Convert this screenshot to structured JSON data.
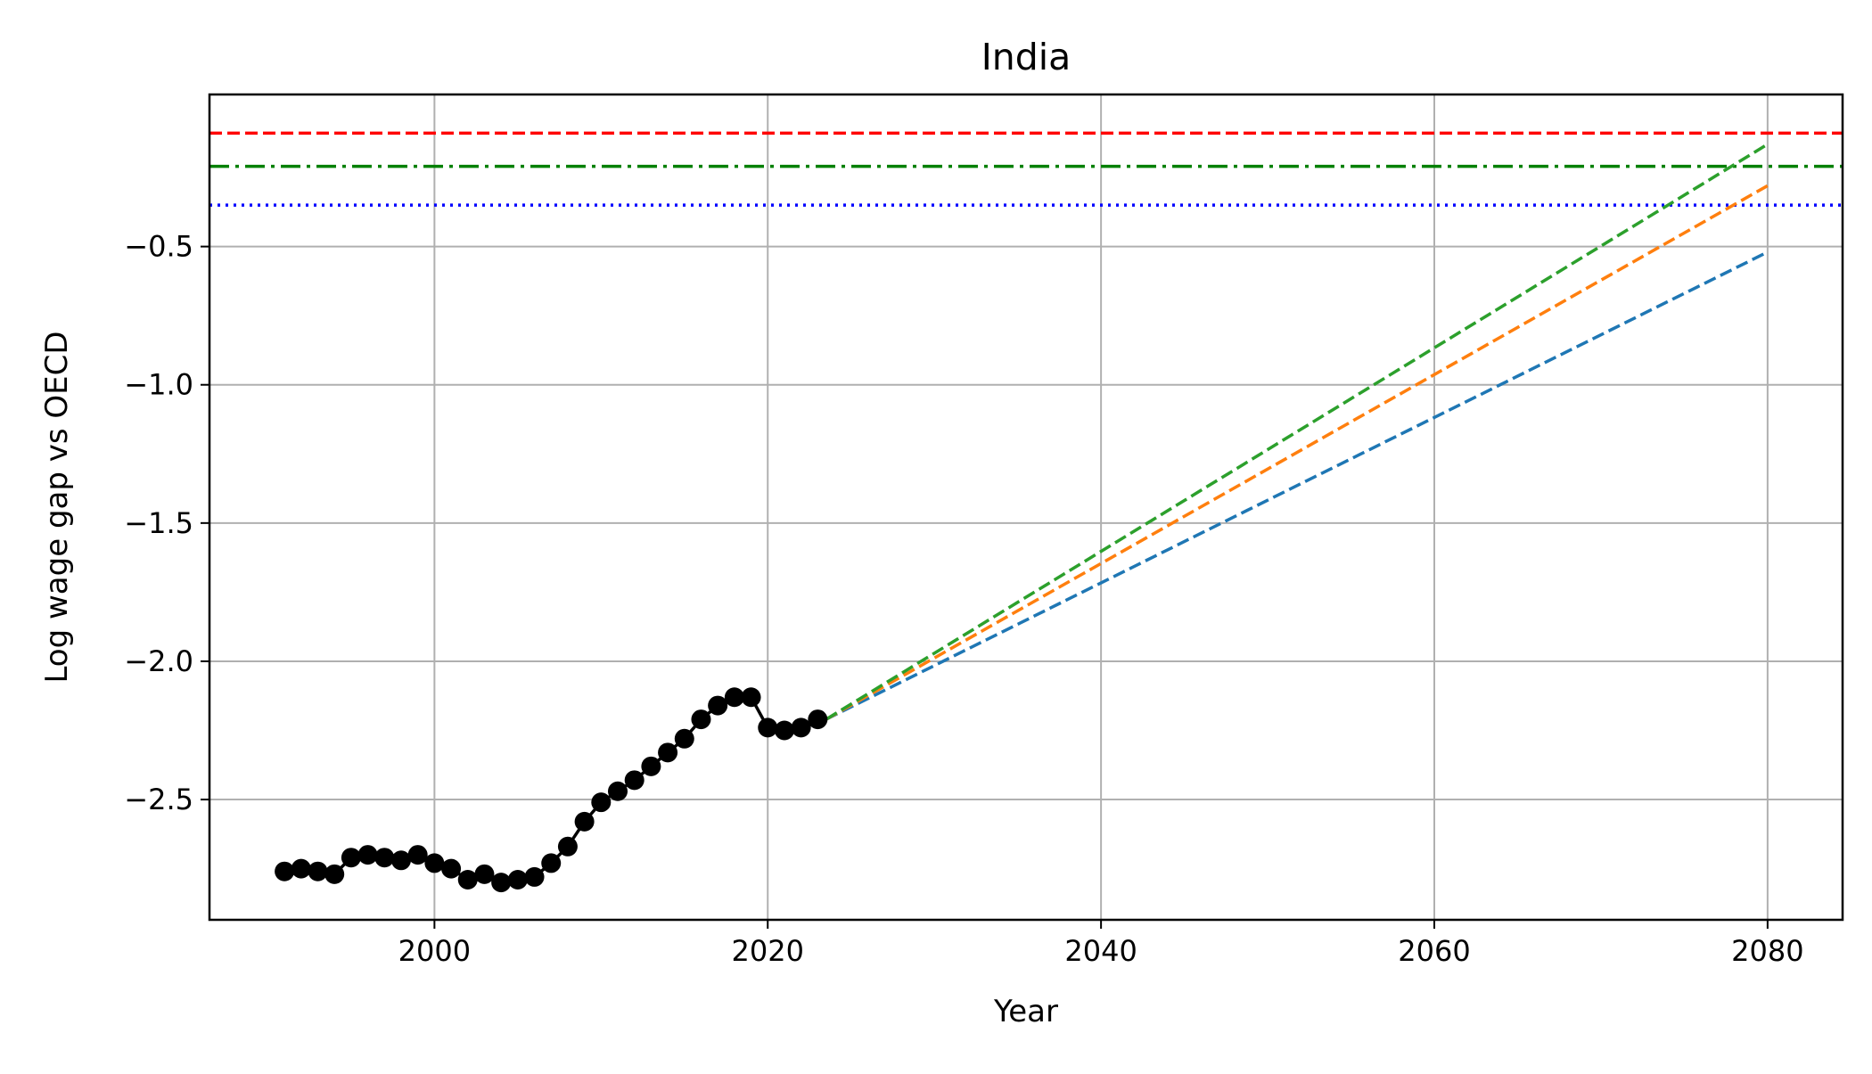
{
  "chart_data": {
    "type": "line",
    "title": "India",
    "xlabel": "Year",
    "ylabel": "Log wage gap vs OECD",
    "xlim": [
      1986.5,
      2084.5
    ],
    "ylim": [
      -2.935,
      0.05
    ],
    "grid": true,
    "x_ticks": [
      2000,
      2020,
      2040,
      2060,
      2080
    ],
    "x_tick_labels": [
      "2000",
      "2020",
      "2040",
      "2060",
      "2080"
    ],
    "y_ticks": [
      -0.5,
      -1.0,
      -1.5,
      -2.0,
      -2.5
    ],
    "y_tick_labels": [
      "−0.5",
      "−1.0",
      "−1.5",
      "−2.0",
      "−2.5"
    ],
    "observed": {
      "color": "#000000",
      "marker": "circle",
      "x": [
        1991,
        1992,
        1993,
        1994,
        1995,
        1996,
        1997,
        1998,
        1999,
        2000,
        2001,
        2002,
        2003,
        2004,
        2005,
        2006,
        2007,
        2008,
        2009,
        2010,
        2011,
        2012,
        2013,
        2014,
        2015,
        2016,
        2017,
        2018,
        2019,
        2020,
        2021,
        2022,
        2023
      ],
      "y": [
        -2.76,
        -2.75,
        -2.76,
        -2.77,
        -2.71,
        -2.7,
        -2.71,
        -2.72,
        -2.7,
        -2.73,
        -2.75,
        -2.79,
        -2.77,
        -2.8,
        -2.79,
        -2.78,
        -2.73,
        -2.67,
        -2.58,
        -2.51,
        -2.47,
        -2.43,
        -2.38,
        -2.33,
        -2.28,
        -2.21,
        -2.16,
        -2.13,
        -2.13,
        -2.24,
        -2.25,
        -2.24,
        -2.21
      ]
    },
    "projections": [
      {
        "color": "#1f77b4",
        "style": "dashed",
        "x": [
          2023.5,
          2080
        ],
        "y": [
          -2.21,
          -0.52
        ]
      },
      {
        "color": "#ff7f0e",
        "style": "dashed",
        "x": [
          2023.5,
          2080
        ],
        "y": [
          -2.21,
          -0.28
        ]
      },
      {
        "color": "#2ca02c",
        "style": "dashed",
        "x": [
          2023.5,
          2080
        ],
        "y": [
          -2.21,
          -0.13
        ]
      }
    ],
    "reference_lines": [
      {
        "color": "#ff0000",
        "style": "dashed",
        "y": -0.09
      },
      {
        "color": "#008000",
        "style": "dashdot",
        "y": -0.21
      },
      {
        "color": "#0000ff",
        "style": "dotted",
        "y": -0.35
      }
    ]
  }
}
